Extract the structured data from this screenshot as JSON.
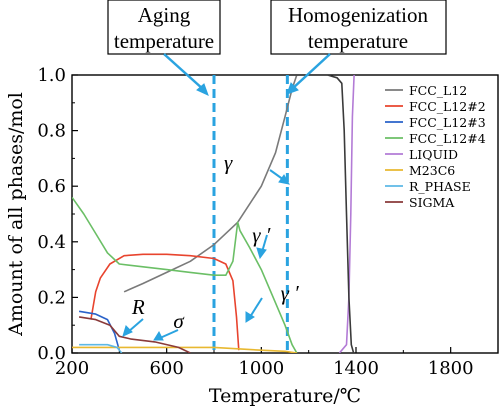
{
  "chart_data": {
    "type": "line",
    "xlabel": "Temperature/℃",
    "ylabel": "Amount of all phases/mol",
    "xlim": [
      200,
      2000
    ],
    "ylim": [
      0,
      1.0
    ],
    "x_ticks": [
      "200",
      "600",
      "1000",
      "1400",
      "1800"
    ],
    "y_ticks": [
      "0.0",
      "0.2",
      "0.4",
      "0.6",
      "0.8",
      "1.0"
    ],
    "grid": false,
    "legend_position": "top-right",
    "series": [
      {
        "name": "FCC_L12",
        "color": "#7a7a7a",
        "points": [
          [
            420,
            0.22
          ],
          [
            500,
            0.25
          ],
          [
            600,
            0.29
          ],
          [
            700,
            0.33
          ],
          [
            800,
            0.39
          ],
          [
            900,
            0.47
          ],
          [
            1000,
            0.6
          ],
          [
            1060,
            0.72
          ],
          [
            1100,
            0.85
          ],
          [
            1130,
            0.95
          ],
          [
            1150,
            1.0
          ]
        ]
      },
      {
        "name": "FCC_L12#2",
        "color": "#e8442e",
        "points": [
          [
            280,
            0.12
          ],
          [
            300,
            0.22
          ],
          [
            320,
            0.27
          ],
          [
            360,
            0.32
          ],
          [
            420,
            0.35
          ],
          [
            500,
            0.355
          ],
          [
            600,
            0.355
          ],
          [
            700,
            0.35
          ],
          [
            800,
            0.34
          ],
          [
            850,
            0.32
          ],
          [
            880,
            0.26
          ],
          [
            895,
            0.13
          ],
          [
            905,
            0.01
          ]
        ]
      },
      {
        "name": "FCC_L12#3",
        "color": "#2a62c9",
        "points": [
          [
            230,
            0.15
          ],
          [
            300,
            0.14
          ],
          [
            350,
            0.12
          ],
          [
            380,
            0.07
          ],
          [
            400,
            0.01
          ]
        ]
      },
      {
        "name": "FCC_L12#4",
        "color": "#6bbf66",
        "points": [
          [
            200,
            0.56
          ],
          [
            250,
            0.5
          ],
          [
            300,
            0.43
          ],
          [
            350,
            0.36
          ],
          [
            400,
            0.32
          ],
          [
            500,
            0.31
          ],
          [
            600,
            0.3
          ],
          [
            700,
            0.29
          ],
          [
            800,
            0.28
          ],
          [
            850,
            0.28
          ],
          [
            880,
            0.33
          ],
          [
            900,
            0.47
          ],
          [
            910,
            0.44
          ],
          [
            950,
            0.38
          ],
          [
            1000,
            0.3
          ],
          [
            1050,
            0.2
          ],
          [
            1100,
            0.1
          ],
          [
            1130,
            0.03
          ],
          [
            1150,
            0.0
          ]
        ]
      },
      {
        "name": "LIQUID",
        "color": "#b37bd6",
        "points": [
          [
            1330,
            0.0
          ],
          [
            1360,
            0.03
          ],
          [
            1370,
            0.2
          ],
          [
            1378,
            0.5
          ],
          [
            1385,
            0.85
          ],
          [
            1392,
            1.0
          ]
        ]
      },
      {
        "name": "M23C6",
        "color": "#e8b830",
        "points": [
          [
            200,
            0.02
          ],
          [
            400,
            0.02
          ],
          [
            600,
            0.02
          ],
          [
            800,
            0.02
          ],
          [
            900,
            0.015
          ],
          [
            1000,
            0.01
          ],
          [
            1100,
            0.006
          ],
          [
            1150,
            0.0
          ]
        ]
      },
      {
        "name": "R_PHASE",
        "color": "#5db8e6",
        "points": [
          [
            230,
            0.03
          ],
          [
            300,
            0.03
          ],
          [
            350,
            0.03
          ],
          [
            390,
            0.02
          ],
          [
            410,
            0.0
          ]
        ]
      },
      {
        "name": "SIGMA",
        "color": "#8a3a3a",
        "points": [
          [
            230,
            0.13
          ],
          [
            300,
            0.12
          ],
          [
            360,
            0.1
          ],
          [
            400,
            0.06
          ],
          [
            450,
            0.05
          ],
          [
            550,
            0.04
          ],
          [
            650,
            0.02
          ],
          [
            700,
            0.0
          ]
        ]
      },
      {
        "name": "",
        "color": "#3a3a3a",
        "points": [
          [
            1120,
            1.0
          ],
          [
            1200,
            1.0
          ],
          [
            1280,
            1.0
          ],
          [
            1320,
            0.99
          ],
          [
            1340,
            0.97
          ],
          [
            1350,
            0.8
          ],
          [
            1360,
            0.5
          ],
          [
            1370,
            0.2
          ],
          [
            1380,
            0.03
          ],
          [
            1390,
            0.0
          ]
        ]
      }
    ],
    "vlines": [
      {
        "x": 800,
        "color": "#2aa3e0"
      },
      {
        "x": 1110,
        "color": "#2aa3e0"
      }
    ],
    "callouts": [
      {
        "text": "Aging temperature",
        "points_to_x": 800
      },
      {
        "text": "Homogenization temperature",
        "points_to_x": 1110
      }
    ],
    "annotations": [
      {
        "text": "γ",
        "x": 860,
        "y": 0.66
      },
      {
        "text": "γ ′",
        "x": 1000,
        "y": 0.4
      },
      {
        "text": "γ ′",
        "x": 1120,
        "y": 0.19
      },
      {
        "text": "R",
        "x": 480,
        "y": 0.14
      },
      {
        "text": "σ",
        "x": 650,
        "y": 0.09
      }
    ]
  }
}
